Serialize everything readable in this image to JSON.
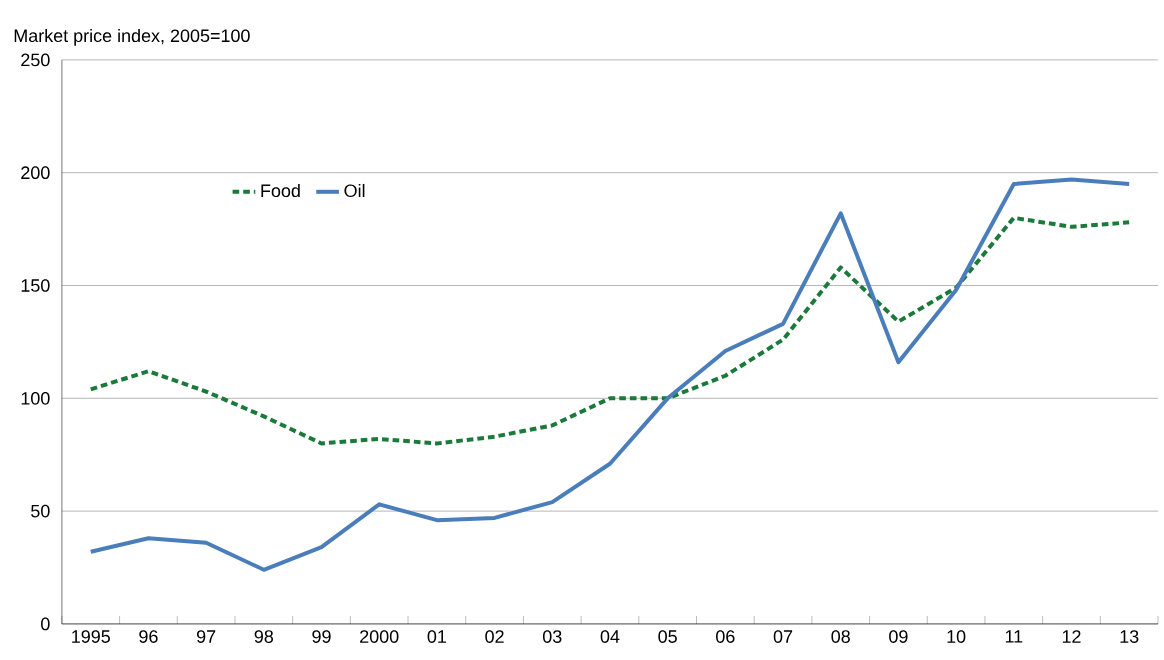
{
  "chart_data": {
    "type": "line",
    "ylabel": "Market price index, 2005=100",
    "categories": [
      "1995",
      "96",
      "97",
      "98",
      "99",
      "2000",
      "01",
      "02",
      "03",
      "04",
      "05",
      "06",
      "07",
      "08",
      "09",
      "10",
      "11",
      "12",
      "13"
    ],
    "series": [
      {
        "name": "Food",
        "color": "#1a7a3a",
        "line_style": "dashed",
        "values": [
          104,
          112,
          103,
          92,
          80,
          82,
          80,
          83,
          88,
          100,
          100,
          110,
          126,
          158,
          134,
          149,
          180,
          176,
          178
        ]
      },
      {
        "name": "Oil",
        "color": "#4a7ebb",
        "line_style": "solid",
        "values": [
          32,
          38,
          36,
          24,
          34,
          53,
          46,
          47,
          54,
          71,
          100,
          121,
          133,
          182,
          116,
          148,
          195,
          197,
          195
        ]
      }
    ],
    "ylim": [
      0,
      250
    ],
    "yticks": [
      0,
      50,
      100,
      150,
      200,
      250
    ],
    "grid": "y",
    "legend": "top left"
  }
}
